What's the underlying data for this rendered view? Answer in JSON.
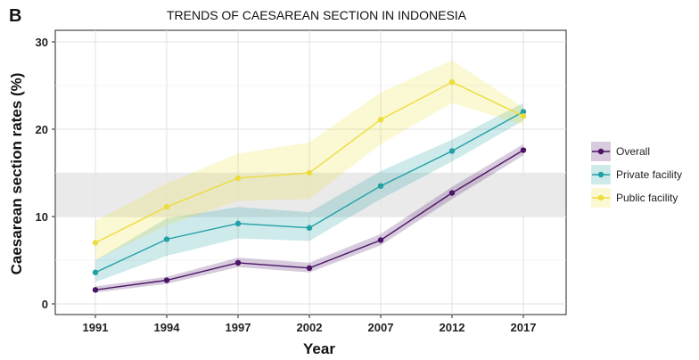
{
  "panel_tag": "B",
  "chart_data": {
    "type": "line",
    "title": "TRENDS OF CAESAREAN SECTION IN INDONESIA",
    "xlabel": "Year",
    "ylabel": "Caesarean section rates (%)",
    "categories": [
      "1991",
      "1994",
      "1997",
      "2002",
      "2007",
      "2012",
      "2017"
    ],
    "ylim": [
      0,
      30
    ],
    "yticks": [
      0,
      10,
      20,
      30
    ],
    "grid": true,
    "reference_band": [
      10,
      15
    ],
    "reference_band_color": "#e6e6e6",
    "legend_position": "right",
    "series": [
      {
        "name": "Overall",
        "color": "#4b1466",
        "values": [
          1.6,
          2.7,
          4.7,
          4.1,
          7.3,
          12.7,
          17.6
        ],
        "lower": [
          1.3,
          2.3,
          4.2,
          3.6,
          6.7,
          12.0,
          17.0
        ],
        "upper": [
          2.0,
          3.1,
          5.3,
          4.7,
          8.0,
          13.4,
          18.3
        ]
      },
      {
        "name": "Private facility",
        "color": "#21a0a6",
        "values": [
          3.6,
          7.4,
          9.2,
          8.7,
          13.5,
          17.5,
          22.0
        ],
        "lower": [
          2.5,
          5.5,
          7.5,
          7.2,
          12.0,
          16.3,
          21.0
        ],
        "upper": [
          5.0,
          9.8,
          11.1,
          10.5,
          15.2,
          18.8,
          23.0
        ]
      },
      {
        "name": "Public facility",
        "color": "#ecdd3c",
        "values": [
          7.0,
          11.1,
          14.4,
          15.0,
          21.1,
          25.4,
          21.5
        ],
        "lower": [
          5.0,
          9.0,
          11.8,
          12.0,
          18.3,
          23.0,
          20.5
        ],
        "upper": [
          9.5,
          13.8,
          17.2,
          18.5,
          24.2,
          27.9,
          22.5
        ]
      }
    ]
  }
}
